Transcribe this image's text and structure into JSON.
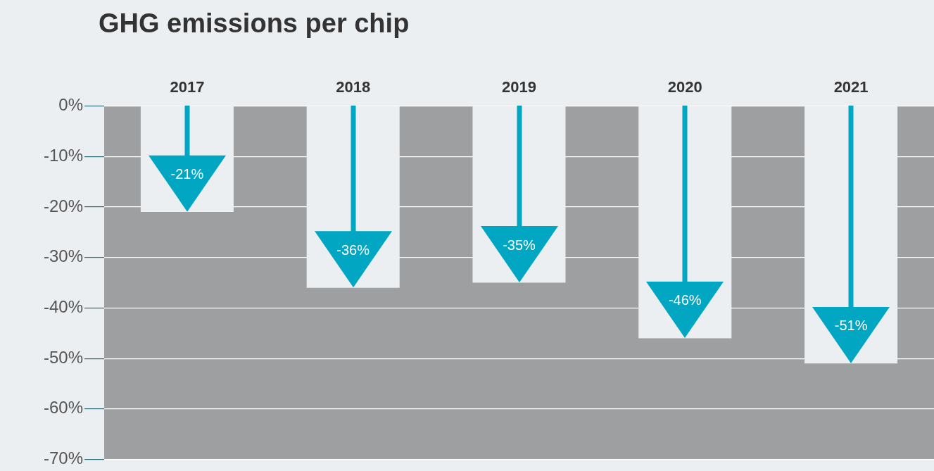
{
  "chart_data": {
    "type": "bar",
    "title": "GHG emissions per chip",
    "categories": [
      "2017",
      "2018",
      "2019",
      "2020",
      "2021"
    ],
    "values": [
      -21,
      -36,
      -35,
      -46,
      -51
    ],
    "color": "#eceff2",
    "value_labels": [
      "-21%",
      "-36%",
      "-35%",
      "-46%",
      "-51%"
    ],
    "grid": "y",
    "ylim": [
      -70,
      0
    ],
    "yticks": [
      {
        "value": 0,
        "label": "0%"
      },
      {
        "value": -10,
        "label": "-10%"
      },
      {
        "value": -20,
        "label": "-20%"
      },
      {
        "value": -30,
        "label": "-30%"
      },
      {
        "value": -40,
        "label": "-40%"
      },
      {
        "value": -50,
        "label": "-50%"
      },
      {
        "value": -60,
        "label": "-60%"
      },
      {
        "value": -70,
        "label": "-70%"
      }
    ]
  }
}
